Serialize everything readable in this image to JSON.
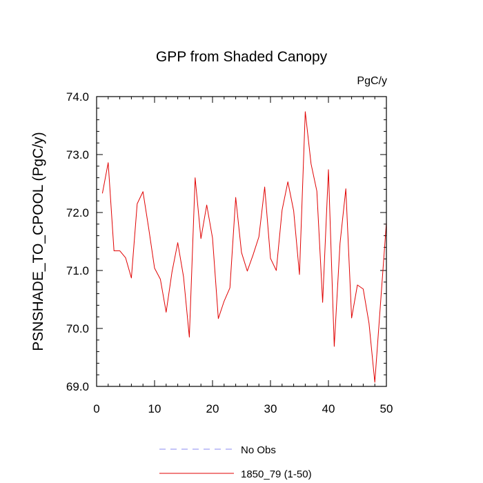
{
  "chart_data": {
    "type": "line",
    "title": "GPP from Shaded Canopy",
    "units_label": "PgC/y",
    "ylabel": "PSNSHADE_TO_CPOOL  (PgC/y)",
    "xlabel": "",
    "xlim": [
      0,
      50
    ],
    "ylim": [
      69.0,
      74.0
    ],
    "x_ticks": [
      0,
      10,
      20,
      30,
      40,
      50
    ],
    "y_ticks": [
      69.0,
      70.0,
      71.0,
      72.0,
      73.0,
      74.0
    ],
    "y_tick_labels": [
      "69.0",
      "70.0",
      "71.0",
      "72.0",
      "73.0",
      "74.0"
    ],
    "legend": {
      "placement": "bottom-center",
      "entries": [
        {
          "label": "No Obs",
          "color": "#8a8af0",
          "dash": "dashed"
        },
        {
          "label": "1850_79 (1-50)",
          "color": "#e00000",
          "dash": "solid"
        }
      ]
    },
    "series": [
      {
        "name": "1850_79 (1-50)",
        "color": "#e00000",
        "x": [
          1,
          2,
          3,
          4,
          5,
          6,
          7,
          8,
          9,
          10,
          11,
          12,
          13,
          14,
          15,
          16,
          17,
          18,
          19,
          20,
          21,
          22,
          23,
          24,
          25,
          26,
          27,
          28,
          29,
          30,
          31,
          32,
          33,
          34,
          35,
          36,
          37,
          38,
          39,
          40,
          41,
          42,
          43,
          44,
          45,
          46,
          47,
          48,
          49,
          50
        ],
        "values": [
          72.33,
          72.86,
          71.34,
          71.34,
          71.22,
          70.87,
          72.15,
          72.36,
          71.72,
          71.04,
          70.85,
          70.28,
          70.97,
          71.48,
          70.89,
          69.85,
          72.6,
          71.55,
          72.13,
          71.56,
          70.17,
          70.47,
          70.7,
          72.26,
          71.31,
          70.99,
          71.27,
          71.58,
          72.44,
          71.21,
          71.0,
          72.04,
          72.53,
          72.03,
          70.93,
          73.74,
          72.84,
          72.37,
          70.45,
          72.74,
          69.69,
          71.47,
          72.41,
          70.18,
          70.75,
          70.68,
          70.09,
          69.07,
          70.45,
          71.83
        ]
      }
    ]
  }
}
